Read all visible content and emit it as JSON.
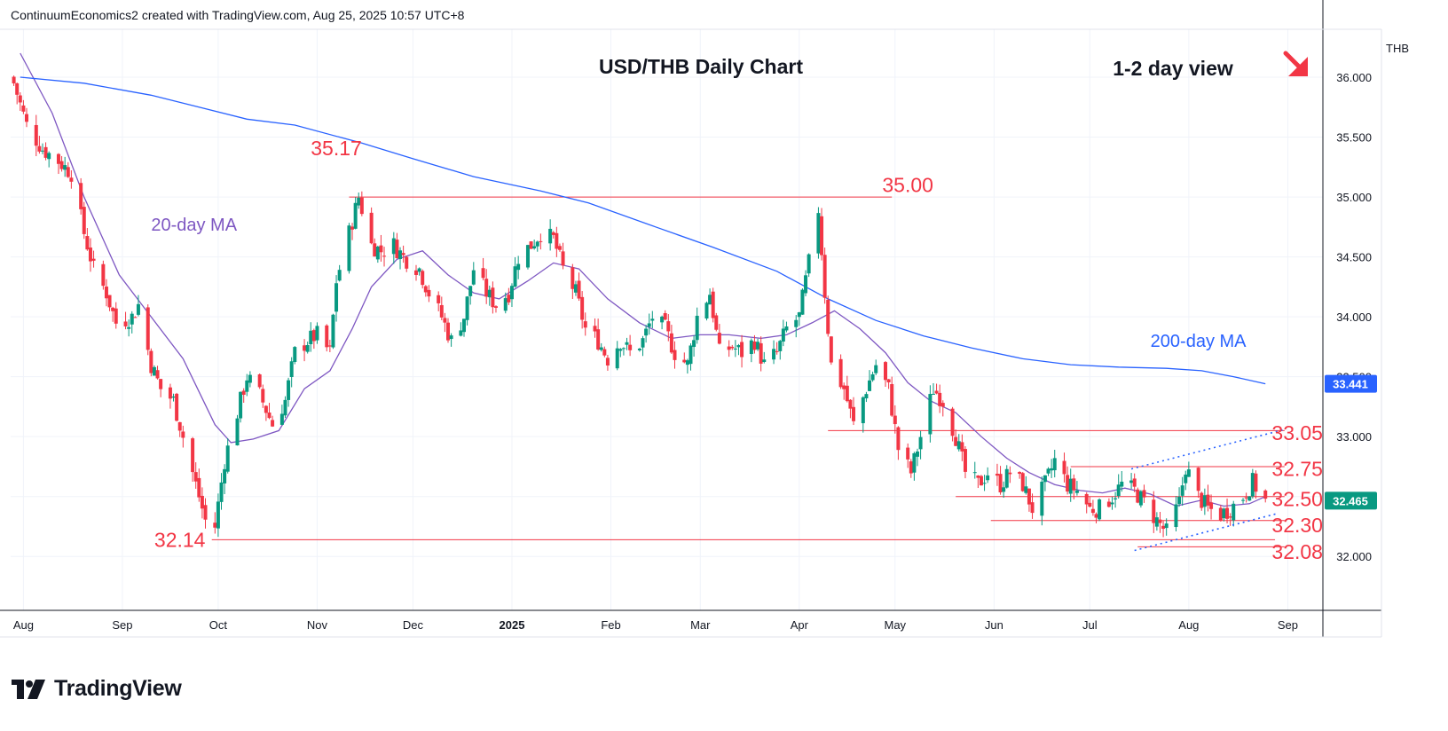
{
  "header": {
    "attribution": "ContinuumEconomics2 created with TradingView.com, Aug 25, 2025 10:57 UTC+8"
  },
  "brand": {
    "name": "TradingView"
  },
  "colors": {
    "up": "#089981",
    "down": "#f23645",
    "ma20": "#7e57c2",
    "ma200": "#2962ff",
    "level": "#f23645",
    "annotation": "#f23645"
  },
  "chart_data": {
    "type": "candlestick",
    "title": "USD/THB Daily Chart",
    "view_label": "1-2 day view",
    "view_icon": "down-right-arrow-icon",
    "currency": "THB",
    "ylim": [
      31.55,
      36.4
    ],
    "x_start": "2024-07-28",
    "x_end": "2025-09-12",
    "y_ticks": [
      "36.000",
      "35.500",
      "35.000",
      "34.500",
      "34.000",
      "33.500",
      "33.000",
      "32.500",
      "32.000"
    ],
    "y_tick_values": [
      36.0,
      35.5,
      35.0,
      34.5,
      34.0,
      33.5,
      33.0,
      32.5,
      32.0
    ],
    "x_ticks": [
      {
        "label": "Aug",
        "date": "2024-08-01",
        "bold": false
      },
      {
        "label": "Sep",
        "date": "2024-09-01",
        "bold": false
      },
      {
        "label": "Oct",
        "date": "2024-10-01",
        "bold": false
      },
      {
        "label": "Nov",
        "date": "2024-11-01",
        "bold": false
      },
      {
        "label": "Dec",
        "date": "2024-12-01",
        "bold": false
      },
      {
        "label": "2025",
        "date": "2025-01-01",
        "bold": true
      },
      {
        "label": "Feb",
        "date": "2025-02-01",
        "bold": false
      },
      {
        "label": "Mar",
        "date": "2025-03-01",
        "bold": false
      },
      {
        "label": "Apr",
        "date": "2025-04-01",
        "bold": false
      },
      {
        "label": "May",
        "date": "2025-05-01",
        "bold": false
      },
      {
        "label": "Jun",
        "date": "2025-06-01",
        "bold": false
      },
      {
        "label": "Jul",
        "date": "2025-07-01",
        "bold": false
      },
      {
        "label": "Aug",
        "date": "2025-08-01",
        "bold": false
      },
      {
        "label": "Sep",
        "date": "2025-09-01",
        "bold": false
      }
    ],
    "price_badges": [
      {
        "label": "33.441",
        "value": 33.441,
        "color": "#2962ff"
      },
      {
        "label": "32.465",
        "value": 32.465,
        "color": "#089981"
      }
    ],
    "series": [
      {
        "name": "20-day MA",
        "color": "#7e57c2",
        "points": [
          [
            "2024-07-31",
            36.2
          ],
          [
            "2024-08-10",
            35.7
          ],
          [
            "2024-08-20",
            35.0
          ],
          [
            "2024-08-31",
            34.35
          ],
          [
            "2024-09-10",
            34.0
          ],
          [
            "2024-09-20",
            33.65
          ],
          [
            "2024-09-30",
            33.1
          ],
          [
            "2024-10-05",
            32.95
          ],
          [
            "2024-10-12",
            32.98
          ],
          [
            "2024-10-20",
            33.05
          ],
          [
            "2024-10-28",
            33.4
          ],
          [
            "2024-11-05",
            33.55
          ],
          [
            "2024-11-12",
            33.9
          ],
          [
            "2024-11-18",
            34.25
          ],
          [
            "2024-11-26",
            34.48
          ],
          [
            "2024-12-04",
            34.55
          ],
          [
            "2024-12-12",
            34.35
          ],
          [
            "2024-12-20",
            34.2
          ],
          [
            "2024-12-28",
            34.15
          ],
          [
            "2025-01-06",
            34.3
          ],
          [
            "2025-01-14",
            34.45
          ],
          [
            "2025-01-22",
            34.4
          ],
          [
            "2025-01-31",
            34.15
          ],
          [
            "2025-02-10",
            33.95
          ],
          [
            "2025-02-20",
            33.82
          ],
          [
            "2025-03-01",
            33.85
          ],
          [
            "2025-03-10",
            33.85
          ],
          [
            "2025-03-20",
            33.82
          ],
          [
            "2025-03-28",
            33.85
          ],
          [
            "2025-04-05",
            33.95
          ],
          [
            "2025-04-12",
            34.05
          ],
          [
            "2025-04-20",
            33.9
          ],
          [
            "2025-04-28",
            33.7
          ],
          [
            "2025-05-05",
            33.45
          ],
          [
            "2025-05-12",
            33.3
          ],
          [
            "2025-05-20",
            33.2
          ],
          [
            "2025-05-28",
            33.0
          ],
          [
            "2025-06-05",
            32.82
          ],
          [
            "2025-06-12",
            32.7
          ],
          [
            "2025-06-20",
            32.6
          ],
          [
            "2025-06-28",
            32.55
          ],
          [
            "2025-07-05",
            32.53
          ],
          [
            "2025-07-12",
            32.57
          ],
          [
            "2025-07-20",
            32.52
          ],
          [
            "2025-07-28",
            32.42
          ],
          [
            "2025-08-05",
            32.47
          ],
          [
            "2025-08-12",
            32.42
          ],
          [
            "2025-08-20",
            32.44
          ],
          [
            "2025-08-25",
            32.5
          ]
        ]
      },
      {
        "name": "200-day MA",
        "color": "#2962ff",
        "points": [
          [
            "2024-07-31",
            36.0
          ],
          [
            "2024-08-20",
            35.95
          ],
          [
            "2024-09-10",
            35.85
          ],
          [
            "2024-09-25",
            35.75
          ],
          [
            "2024-10-10",
            35.65
          ],
          [
            "2024-10-25",
            35.6
          ],
          [
            "2024-11-15",
            35.45
          ],
          [
            "2024-12-01",
            35.32
          ],
          [
            "2024-12-20",
            35.17
          ],
          [
            "2025-01-10",
            35.05
          ],
          [
            "2025-01-25",
            34.95
          ],
          [
            "2025-02-15",
            34.75
          ],
          [
            "2025-03-05",
            34.58
          ],
          [
            "2025-03-25",
            34.38
          ],
          [
            "2025-04-10",
            34.15
          ],
          [
            "2025-04-25",
            33.97
          ],
          [
            "2025-05-10",
            33.84
          ],
          [
            "2025-05-25",
            33.74
          ],
          [
            "2025-06-10",
            33.65
          ],
          [
            "2025-06-25",
            33.6
          ],
          [
            "2025-07-10",
            33.58
          ],
          [
            "2025-07-25",
            33.57
          ],
          [
            "2025-08-05",
            33.55
          ],
          [
            "2025-08-15",
            33.5
          ],
          [
            "2025-08-25",
            33.441
          ]
        ]
      }
    ],
    "labels": [
      {
        "text": "20-day MA",
        "color": "#7e57c2",
        "date": "2024-09-10",
        "price": 34.72
      },
      {
        "text": "200-day MA",
        "color": "#2962ff",
        "date": "2025-07-20",
        "price": 33.75
      },
      {
        "text": "35.17",
        "color": "#f23645",
        "date": "2024-10-30",
        "price": 35.35
      },
      {
        "text": "35.00",
        "color": "#f23645",
        "date": "2025-04-27",
        "price": 35.04
      },
      {
        "text": "32.14",
        "color": "#f23645",
        "date": "2024-09-11",
        "price": 32.08
      },
      {
        "text": "33.05",
        "color": "#f23645",
        "date": "2025-08-27",
        "price": 32.97
      },
      {
        "text": "32.75",
        "color": "#f23645",
        "date": "2025-08-27",
        "price": 32.67
      },
      {
        "text": "32.50",
        "color": "#f23645",
        "date": "2025-08-27",
        "price": 32.42
      },
      {
        "text": "32.30",
        "color": "#f23645",
        "date": "2025-08-27",
        "price": 32.2
      },
      {
        "text": "32.08",
        "color": "#f23645",
        "date": "2025-08-27",
        "price": 31.98
      }
    ],
    "levels": [
      {
        "value": 35.0,
        "from": "2024-11-11",
        "to": "2025-04-30"
      },
      {
        "value": 33.05,
        "from": "2025-04-10",
        "to": "2025-08-31"
      },
      {
        "value": 32.75,
        "from": "2025-06-25",
        "to": "2025-08-31"
      },
      {
        "value": 32.5,
        "from": "2025-05-20",
        "to": "2025-08-31"
      },
      {
        "value": 32.3,
        "from": "2025-05-31",
        "to": "2025-08-31"
      },
      {
        "value": 32.14,
        "from": "2024-09-29",
        "to": "2025-08-28"
      },
      {
        "value": 32.08,
        "from": "2025-07-16",
        "to": "2025-08-31"
      }
    ],
    "trendlines": [
      {
        "from": [
          "2025-07-14",
          32.73
        ],
        "to": [
          "2025-08-31",
          33.06
        ]
      },
      {
        "from": [
          "2025-07-15",
          32.05
        ],
        "to": [
          "2025-08-29",
          32.36
        ]
      }
    ],
    "close_path": [
      [
        "2024-07-29",
        35.95
      ],
      [
        "2024-08-02",
        35.6
      ],
      [
        "2024-08-07",
        35.4
      ],
      [
        "2024-08-12",
        35.3
      ],
      [
        "2024-08-16",
        35.2
      ],
      [
        "2024-08-20",
        34.7
      ],
      [
        "2024-08-23",
        34.4
      ],
      [
        "2024-08-27",
        34.2
      ],
      [
        "2024-08-30",
        33.95
      ],
      [
        "2024-09-04",
        34.0
      ],
      [
        "2024-09-06",
        34.1
      ],
      [
        "2024-09-10",
        33.6
      ],
      [
        "2024-09-13",
        33.4
      ],
      [
        "2024-09-17",
        33.3
      ],
      [
        "2024-09-20",
        33.0
      ],
      [
        "2024-09-24",
        32.6
      ],
      [
        "2024-09-27",
        32.3
      ],
      [
        "2024-09-30",
        32.25
      ],
      [
        "2024-10-03",
        32.8
      ],
      [
        "2024-10-07",
        33.2
      ],
      [
        "2024-10-10",
        33.5
      ],
      [
        "2024-10-14",
        33.35
      ],
      [
        "2024-10-18",
        33.1
      ],
      [
        "2024-10-22",
        33.3
      ],
      [
        "2024-10-25",
        33.7
      ],
      [
        "2024-10-29",
        33.8
      ],
      [
        "2024-11-01",
        33.85
      ],
      [
        "2024-11-05",
        33.7
      ],
      [
        "2024-11-07",
        34.3
      ],
      [
        "2024-11-11",
        34.7
      ],
      [
        "2024-11-14",
        35.0
      ],
      [
        "2024-11-18",
        34.6
      ],
      [
        "2024-11-21",
        34.55
      ],
      [
        "2024-11-25",
        34.6
      ],
      [
        "2024-11-28",
        34.5
      ],
      [
        "2024-12-03",
        34.4
      ],
      [
        "2024-12-06",
        34.2
      ],
      [
        "2024-12-10",
        34.0
      ],
      [
        "2024-12-13",
        33.8
      ],
      [
        "2024-12-17",
        34.0
      ],
      [
        "2024-12-20",
        34.4
      ],
      [
        "2024-12-24",
        34.2
      ],
      [
        "2024-12-27",
        34.1
      ],
      [
        "2024-12-31",
        34.2
      ],
      [
        "2025-01-03",
        34.5
      ],
      [
        "2025-01-07",
        34.6
      ],
      [
        "2025-01-10",
        34.7
      ],
      [
        "2025-01-14",
        34.65
      ],
      [
        "2025-01-17",
        34.4
      ],
      [
        "2025-01-21",
        34.2
      ],
      [
        "2025-01-24",
        33.9
      ],
      [
        "2025-01-28",
        33.8
      ],
      [
        "2025-01-31",
        33.65
      ],
      [
        "2025-02-04",
        33.8
      ],
      [
        "2025-02-07",
        33.7
      ],
      [
        "2025-02-11",
        33.8
      ],
      [
        "2025-02-14",
        34.0
      ],
      [
        "2025-02-18",
        33.9
      ],
      [
        "2025-02-21",
        33.7
      ],
      [
        "2025-02-25",
        33.6
      ],
      [
        "2025-02-28",
        34.0
      ],
      [
        "2025-03-04",
        34.2
      ],
      [
        "2025-03-07",
        33.7
      ],
      [
        "2025-03-11",
        33.75
      ],
      [
        "2025-03-14",
        33.7
      ],
      [
        "2025-03-18",
        33.8
      ],
      [
        "2025-03-21",
        33.6
      ],
      [
        "2025-03-25",
        33.7
      ],
      [
        "2025-03-28",
        33.9
      ],
      [
        "2025-04-01",
        34.0
      ],
      [
        "2025-04-03",
        34.3
      ],
      [
        "2025-04-07",
        34.9
      ],
      [
        "2025-04-09",
        34.2
      ],
      [
        "2025-04-11",
        33.6
      ],
      [
        "2025-04-15",
        33.4
      ],
      [
        "2025-04-18",
        33.1
      ],
      [
        "2025-04-22",
        33.4
      ],
      [
        "2025-04-25",
        33.6
      ],
      [
        "2025-04-29",
        33.4
      ],
      [
        "2025-05-02",
        32.9
      ],
      [
        "2025-05-06",
        32.7
      ],
      [
        "2025-05-09",
        33.0
      ],
      [
        "2025-05-13",
        33.4
      ],
      [
        "2025-05-16",
        33.3
      ],
      [
        "2025-05-20",
        33.0
      ],
      [
        "2025-05-23",
        32.7
      ],
      [
        "2025-05-27",
        32.6
      ],
      [
        "2025-05-30",
        32.7
      ],
      [
        "2025-06-03",
        32.6
      ],
      [
        "2025-06-06",
        32.7
      ],
      [
        "2025-06-10",
        32.6
      ],
      [
        "2025-06-13",
        32.4
      ],
      [
        "2025-06-17",
        32.6
      ],
      [
        "2025-06-20",
        32.8
      ],
      [
        "2025-06-24",
        32.6
      ],
      [
        "2025-06-27",
        32.55
      ],
      [
        "2025-07-01",
        32.4
      ],
      [
        "2025-07-04",
        32.4
      ],
      [
        "2025-07-08",
        32.5
      ],
      [
        "2025-07-11",
        32.6
      ],
      [
        "2025-07-15",
        32.55
      ],
      [
        "2025-07-18",
        32.45
      ],
      [
        "2025-07-22",
        32.3
      ],
      [
        "2025-07-25",
        32.2
      ],
      [
        "2025-07-29",
        32.45
      ],
      [
        "2025-07-31",
        32.75
      ],
      [
        "2025-08-04",
        32.5
      ],
      [
        "2025-08-07",
        32.4
      ],
      [
        "2025-08-11",
        32.35
      ],
      [
        "2025-08-14",
        32.4
      ],
      [
        "2025-08-18",
        32.5
      ],
      [
        "2025-08-21",
        32.62
      ],
      [
        "2025-08-25",
        32.465
      ]
    ]
  }
}
